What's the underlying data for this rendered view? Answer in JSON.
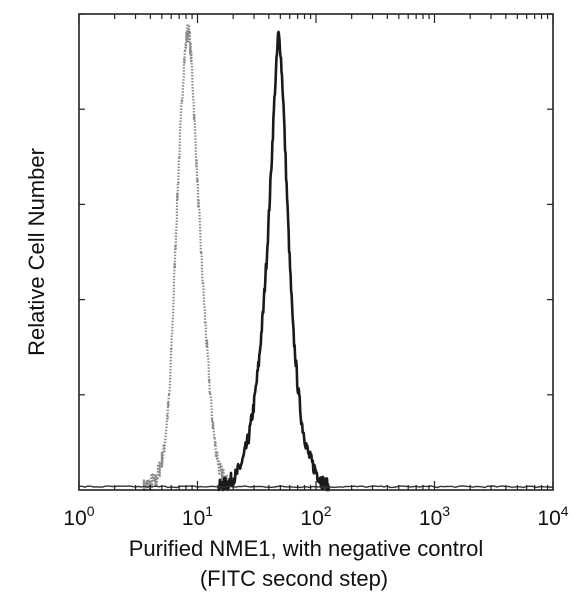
{
  "chart_data": {
    "type": "line",
    "title": "",
    "xlabel_line1": "Purified NME1, with negative control",
    "xlabel_line2": "(FITC second step)",
    "ylabel": "Relative Cell Number",
    "x_scale": "log",
    "xlim": [
      1,
      10000
    ],
    "ylim": [
      0,
      100
    ],
    "x_ticks": [
      {
        "base": "10",
        "exp": "0"
      },
      {
        "base": "10",
        "exp": "1"
      },
      {
        "base": "10",
        "exp": "2"
      },
      {
        "base": "10",
        "exp": "3"
      },
      {
        "base": "10",
        "exp": "4"
      }
    ],
    "y_major_ticks": 5,
    "grid": false,
    "legend": "none",
    "series": [
      {
        "style": "dotted-gray",
        "color": "#8a8a8a",
        "x": [
          3.5,
          4.5,
          5.2,
          5.8,
          6.2,
          6.6,
          7.0,
          7.4,
          7.7,
          8.0,
          8.3,
          8.6,
          9.0,
          9.5,
          10.2,
          11.0,
          12.0,
          13.0,
          14.0,
          15.5,
          18.0
        ],
        "y": [
          0.5,
          2,
          8,
          20,
          37,
          55,
          70,
          82,
          90,
          94,
          97,
          95,
          88,
          76,
          60,
          45,
          30,
          18,
          10,
          4,
          1
        ]
      },
      {
        "style": "solid-dark",
        "color": "#1a1a1a",
        "x": [
          15,
          18,
          21,
          24,
          27,
          30,
          33,
          36,
          39,
          42,
          45,
          48,
          50,
          53,
          56,
          60,
          64,
          70,
          76,
          85,
          95,
          110,
          130
        ],
        "y": [
          0.5,
          1.5,
          3,
          6,
          11,
          18,
          27,
          38,
          52,
          68,
          84,
          96,
          93,
          82,
          66,
          48,
          34,
          22,
          14,
          8,
          5,
          2,
          0.5
        ]
      }
    ]
  }
}
